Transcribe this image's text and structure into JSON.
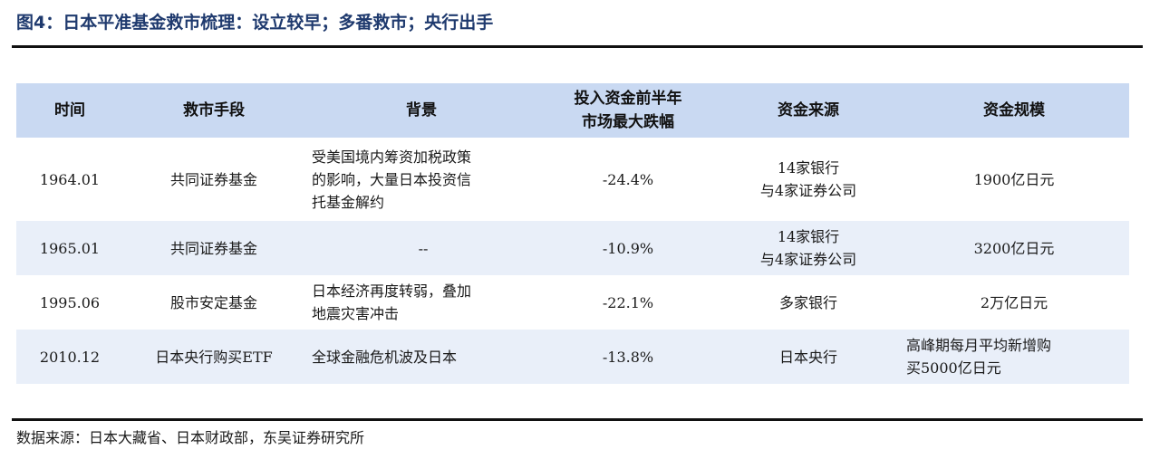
{
  "title": "图4：日本平准基金救市梳理：设立较早；多番救市；央行出手",
  "table": {
    "headers": {
      "time": "时间",
      "method": "救市手段",
      "background": "背景",
      "drop_line1": "投入资金前半年",
      "drop_line2": "市场最大跌幅",
      "source": "资金来源",
      "scale": "资金规模"
    },
    "rows": [
      {
        "time": "1964.01",
        "method": "共同证券基金",
        "background": [
          "受美国境内筹资加税政策",
          "的影响，大量日本投资信",
          "托基金解约"
        ],
        "drop": "-24.4%",
        "source": [
          "14家银行",
          "与4家证券公司"
        ],
        "scale": [
          "1900亿日元"
        ]
      },
      {
        "time": "1965.01",
        "method": "共同证券基金",
        "background": [
          "--"
        ],
        "drop": "-10.9%",
        "source": [
          "14家银行",
          "与4家证券公司"
        ],
        "scale": [
          "3200亿日元"
        ]
      },
      {
        "time": "1995.06",
        "method": "股市安定基金",
        "background": [
          "日本经济再度转弱，叠加",
          "地震灾害冲击"
        ],
        "drop": "-22.1%",
        "source": [
          "多家银行"
        ],
        "scale": [
          "2万亿日元"
        ]
      },
      {
        "time": "2010.12",
        "method": "日本央行购买ETF",
        "background": [
          "全球金融危机波及日本"
        ],
        "drop": "-13.8%",
        "source": [
          "日本央行"
        ],
        "scale": [
          "高峰期每月平均新增购",
          "买5000亿日元"
        ]
      }
    ]
  },
  "source_note": "数据来源：日本大藏省、日本财政部，东吴证券研究所"
}
